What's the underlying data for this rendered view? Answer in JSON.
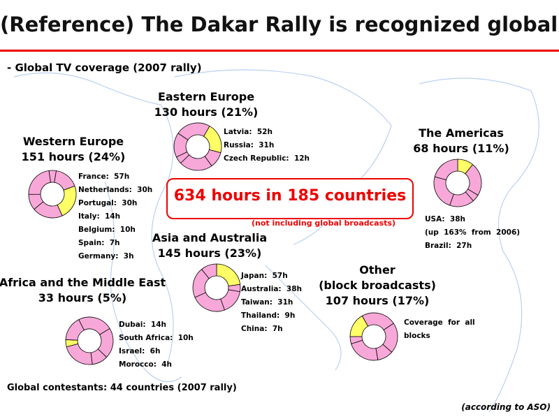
{
  "title": "(Reference) The Dakar Rally is recognized globally",
  "subtitle": "- Global TV coverage (2007 rally)",
  "headline": "634 hours in 185 countries",
  "headline_note": "(not including global broadcasts)",
  "footnote": "Global contestants: 44 countries (2007 rally)",
  "source": "(according to ASO)",
  "chart_data": {
    "type": "pie",
    "categories": [
      "Western Europe",
      "Eastern Europe",
      "The Americas",
      "Asia and Australia",
      "Africa and the Middle East",
      "Other\n(block broadcasts)"
    ],
    "values": [
      24,
      21,
      11,
      23,
      5,
      17
    ],
    "value_labels": [
      "151 hours (24%)",
      "130 hours (21%)",
      "68 hours (11%)",
      "145 hours (23%)",
      "33 hours (5%)",
      "107 hours (17%)"
    ],
    "color": "#f7a8d8",
    "highlight_color": "#ffff66",
    "details": [
      [
        "France:  57h",
        "Netherlands:  30h",
        "Portugal:  30h",
        "Italy:  14h",
        "Belgium:  10h",
        "Spain:  7h",
        "Germany:  3h"
      ],
      [
        "Latvia:  52h",
        "Russia:  31h",
        "Czech Republic:  12h"
      ],
      [
        "USA:  38h",
        "(up  163%  from  2006)",
        "Brazil:  27h"
      ],
      [
        "Japan:  57h",
        "Australia:  38h",
        "Taiwan:  31h",
        "Thailand:  9h",
        "China:  7h"
      ],
      [
        "Dubai:  14h",
        "South Africa:  10h",
        "Israel:  6h",
        "Morocco:  4h"
      ],
      [
        "Coverage  for  all",
        "blocks"
      ]
    ]
  }
}
